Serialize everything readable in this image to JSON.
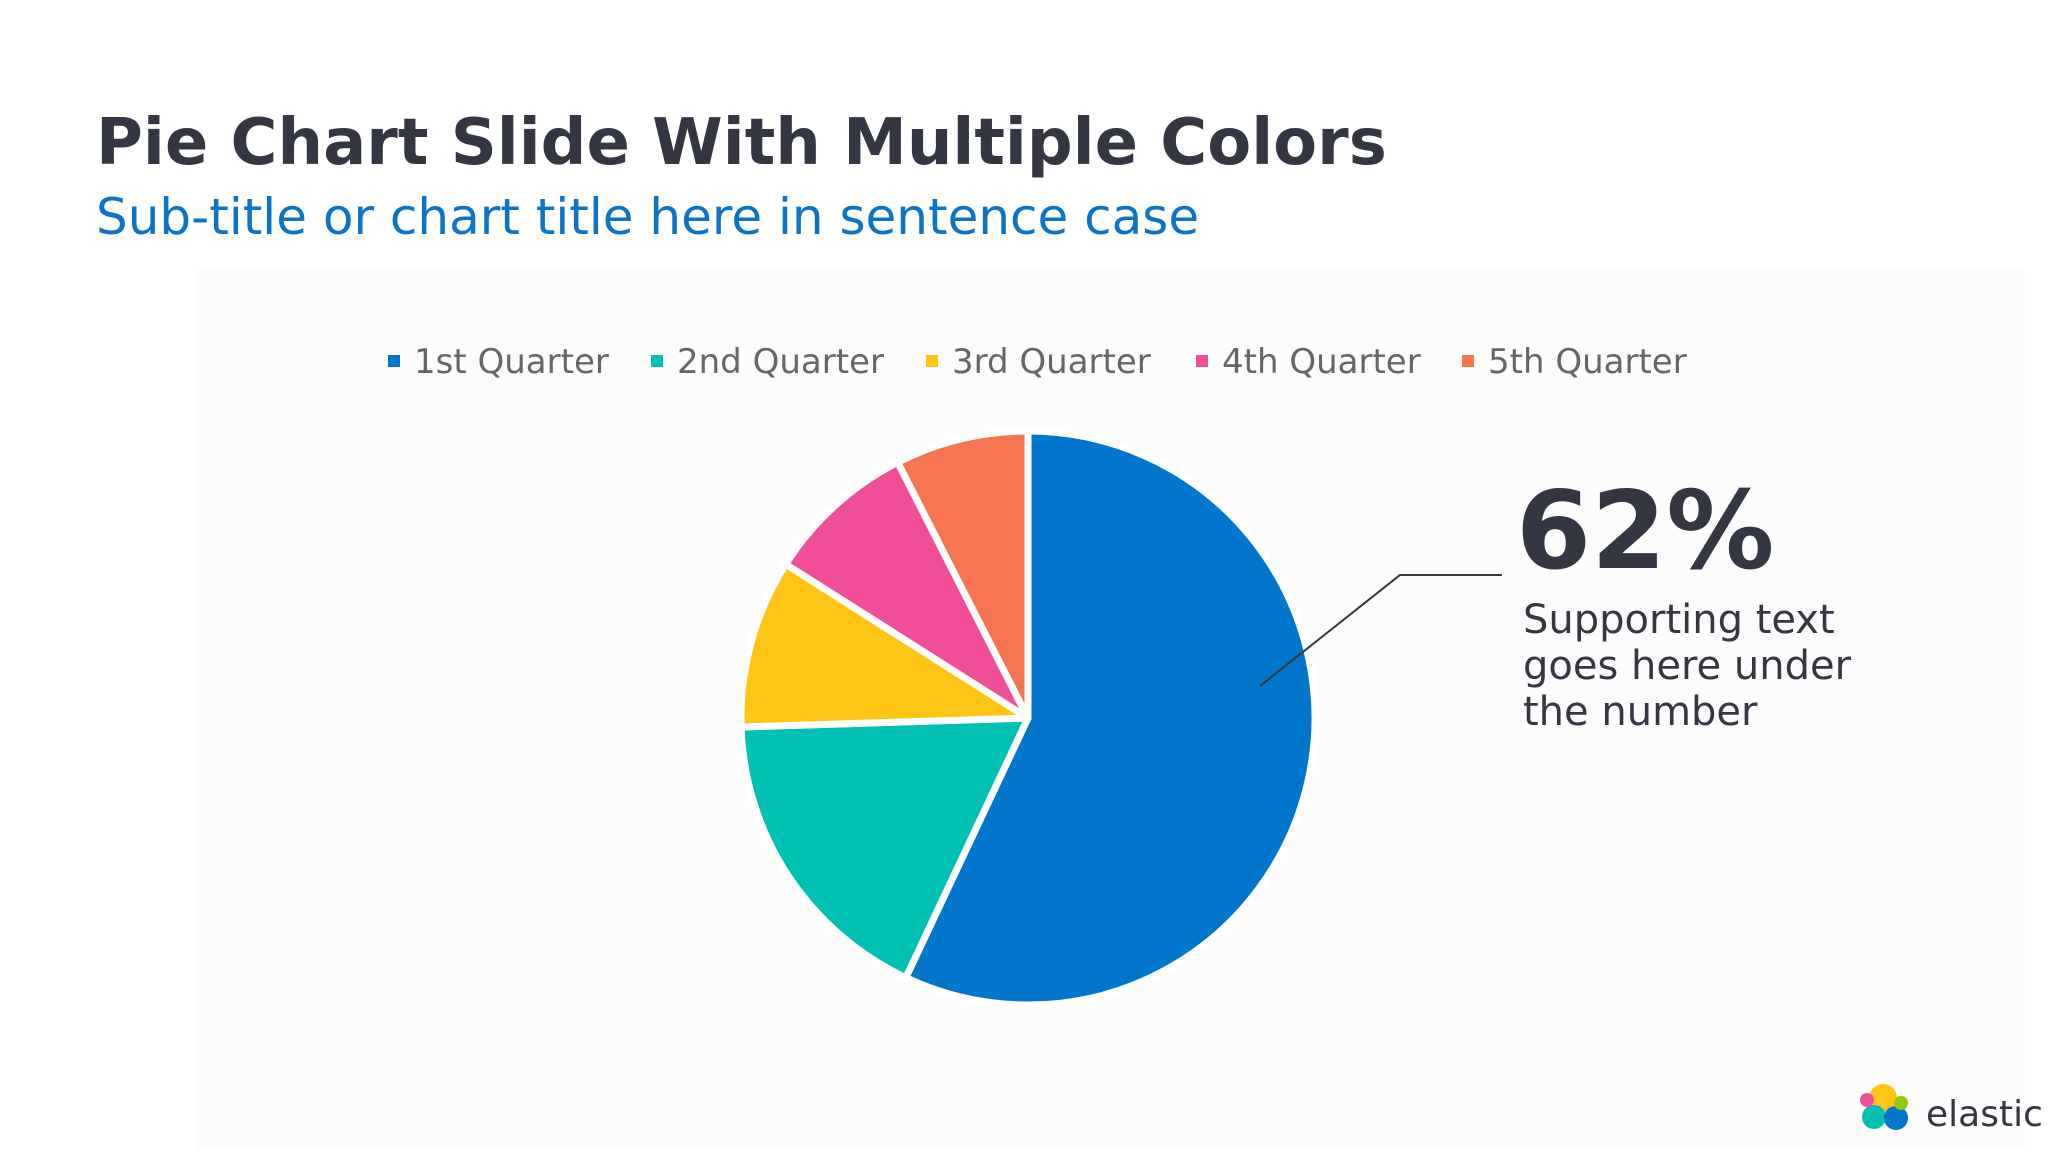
{
  "chart_data": {
    "type": "pie",
    "title": "Pie Chart Slide With Multiple Colors",
    "subtitle": "Sub-title or chart title here in sentence case",
    "categories": [
      "1st Quarter",
      "2nd Quarter",
      "3rd Quarter",
      "4th Quarter",
      "5th Quarter"
    ],
    "values": [
      57,
      17.5,
      9.5,
      8.5,
      7.5
    ],
    "colors": [
      "#0077cc",
      "#00bfb3",
      "#fec514",
      "#f04e98",
      "#f67551"
    ],
    "legend": "top",
    "annotation": {
      "value": "62%",
      "text": [
        "Supporting text",
        "goes here under",
        "the number"
      ]
    }
  },
  "logo": "elastic"
}
